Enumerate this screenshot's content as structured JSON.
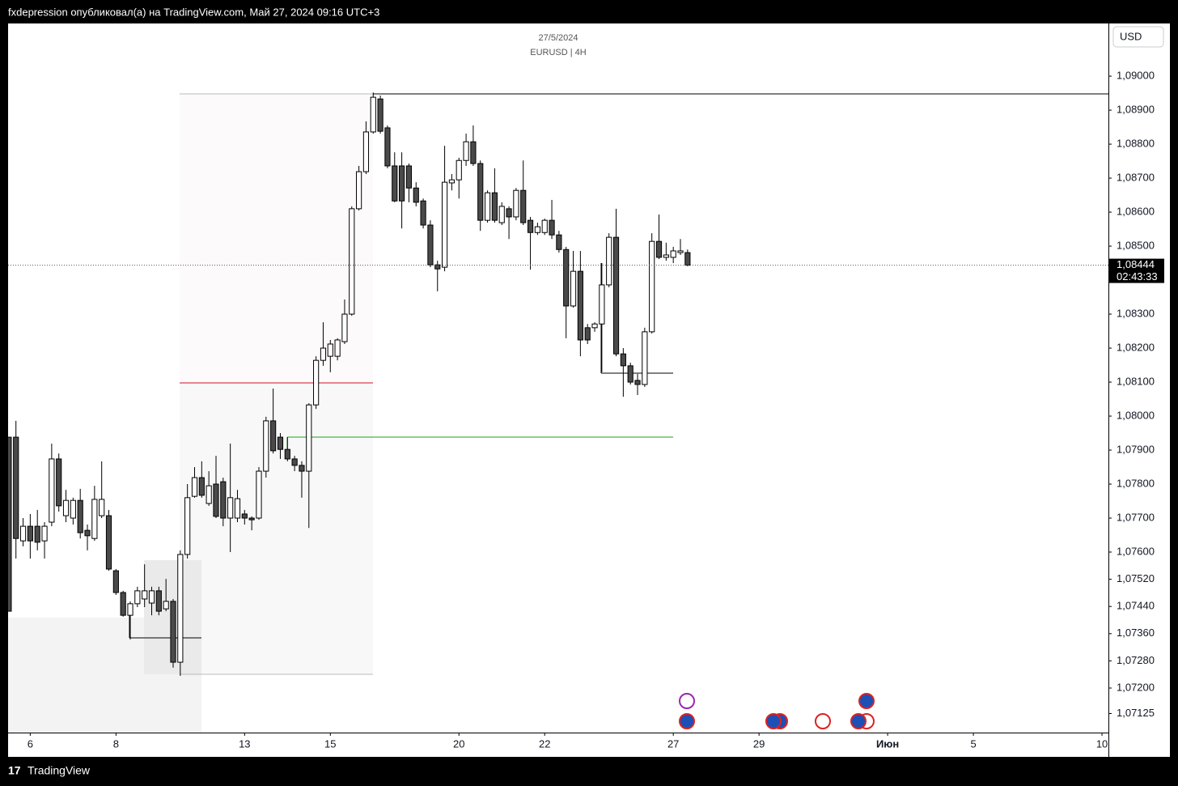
{
  "header": "fxdepression опубликовал(а) на TradingView.com, Май 27, 2024 09:16 UTC+3",
  "footer": "TradingView",
  "chart_data": {
    "type": "candlestick",
    "title": "27/5/2024",
    "subtitle": "EURUSD | 4H",
    "currency": "USD",
    "up_color": "#ffffff",
    "down_color": "#4a4a4a",
    "open": [
      1.07938,
      1.07938,
      1.07633,
      1.07676,
      1.07676,
      1.07633,
      1.07688,
      1.07874,
      1.07707,
      1.077,
      1.07752,
      1.07664,
      1.0764,
      1.07707,
      1.07707,
      1.07545,
      1.07481,
      1.07414,
      1.07448,
      1.07462,
      1.0745,
      1.07486,
      1.07433,
      1.07455,
      1.07276,
      1.07593,
      1.07764,
      1.07819,
      1.07743,
      1.078,
      1.07807,
      1.077,
      1.077,
      1.07712,
      1.077,
      1.077,
      1.07838,
      1.07986,
      1.07938,
      1.07902,
      1.07874,
      1.07855,
      1.07838,
      1.08033,
      1.08164,
      1.08176,
      1.08176,
      1.08219,
      1.083,
      1.0861,
      1.08719,
      1.08836,
      1.08933,
      1.08848,
      1.08736,
      1.08736,
      1.08736,
      1.08671,
      1.08633,
      1.08562,
      1.08445,
      1.08438,
      1.08686,
      1.08695,
      1.08752,
      1.08807,
      1.08743,
      1.08576,
      1.08657,
      1.08569,
      1.0861,
      1.08586,
      1.08664,
      1.08576,
      1.0854,
      1.0854,
      1.08576,
      1.08533,
      1.0849,
      1.08324,
      1.08426,
      1.0826,
      1.0826,
      1.08271,
      1.08386,
      1.08526,
      1.08183,
      1.08148,
      1.08105,
      1.08093,
      1.08248,
      1.08514,
      1.08467,
      1.08467,
      1.08481,
      1.08481
    ],
    "high": [
      1.07938,
      1.07986,
      1.077,
      1.07712,
      1.07724,
      1.07688,
      1.07919,
      1.0789,
      1.07783,
      1.0776,
      1.07786,
      1.07681,
      1.07795,
      1.07867,
      1.07724,
      1.0755,
      1.07486,
      1.07455,
      1.07498,
      1.07564,
      1.07498,
      1.07498,
      1.07521,
      1.07462,
      1.07605,
      1.078,
      1.0785,
      1.07867,
      1.07838,
      1.07883,
      1.07819,
      1.07919,
      1.07783,
      1.07724,
      1.07705,
      1.0785,
      1.07998,
      1.08081,
      1.0795,
      1.07938,
      1.07883,
      1.07867,
      1.08038,
      1.08176,
      1.08276,
      1.08224,
      1.08229,
      1.08343,
      1.08617,
      1.08736,
      1.08867,
      1.08952,
      1.08943,
      1.08855,
      1.08776,
      1.08776,
      1.08743,
      1.08688,
      1.0864,
      1.08576,
      1.08457,
      1.08795,
      1.08712,
      1.0876,
      1.08831,
      1.08855,
      1.08752,
      1.08664,
      1.08729,
      1.08629,
      1.08617,
      1.08671,
      1.08752,
      1.08586,
      1.08569,
      1.08581,
      1.08636,
      1.08545,
      1.08498,
      1.08486,
      1.08486,
      1.08271,
      1.08276,
      1.0845,
      1.08538,
      1.0861,
      1.082,
      1.08157,
      1.08124,
      1.0826,
      1.08538,
      1.08593,
      1.0851,
      1.08498,
      1.08521,
      1.0849
    ],
    "low": [
      1.07426,
      1.07581,
      1.07617,
      1.07581,
      1.07605,
      1.07581,
      1.07676,
      1.07719,
      1.07688,
      1.07681,
      1.0764,
      1.07605,
      1.07633,
      1.077,
      1.07545,
      1.07474,
      1.0741,
      1.07343,
      1.07438,
      1.07438,
      1.07414,
      1.07414,
      1.07426,
      1.0726,
      1.07236,
      1.07581,
      1.0776,
      1.0776,
      1.07736,
      1.077,
      1.07676,
      1.076,
      1.07688,
      1.07681,
      1.07664,
      1.07695,
      1.07819,
      1.0789,
      1.07874,
      1.07867,
      1.07838,
      1.0776,
      1.07671,
      1.08021,
      1.08148,
      1.08129,
      1.08164,
      1.08212,
      1.08295,
      1.08605,
      1.08712,
      1.08831,
      1.08831,
      1.08729,
      1.08629,
      1.08552,
      1.08629,
      1.08617,
      1.08552,
      1.08438,
      1.08367,
      1.08426,
      1.08664,
      1.0864,
      1.08736,
      1.08736,
      1.08545,
      1.08569,
      1.08569,
      1.08562,
      1.08521,
      1.08576,
      1.08562,
      1.08431,
      1.08533,
      1.08533,
      1.08521,
      1.08481,
      1.08229,
      1.08319,
      1.08176,
      1.08212,
      1.08248,
      1.08129,
      1.08379,
      1.08176,
      1.08057,
      1.08093,
      1.08062,
      1.08086,
      1.08243,
      1.08462,
      1.08457,
      1.0845,
      1.08474,
      1.08441
    ],
    "close": [
      1.07426,
      1.0764,
      1.07676,
      1.07633,
      1.07629,
      1.07676,
      1.07874,
      1.07736,
      1.07752,
      1.07752,
      1.07657,
      1.07648,
      1.07755,
      1.07755,
      1.0755,
      1.07481,
      1.07414,
      1.07448,
      1.07486,
      1.07486,
      1.07486,
      1.07426,
      1.07455,
      1.07276,
      1.07593,
      1.0776,
      1.07819,
      1.07767,
      1.07795,
      1.07705,
      1.077,
      1.0776,
      1.07757,
      1.077,
      1.07695,
      1.07838,
      1.07986,
      1.07898,
      1.07902,
      1.07874,
      1.07855,
      1.07838,
      1.08033,
      1.08164,
      1.082,
      1.08212,
      1.08224,
      1.083,
      1.0861,
      1.08719,
      1.08836,
      1.08938,
      1.08838,
      1.08736,
      1.08633,
      1.08633,
      1.08671,
      1.08629,
      1.08562,
      1.08445,
      1.08433,
      1.08688,
      1.08695,
      1.08752,
      1.08807,
      1.08743,
      1.08576,
      1.08657,
      1.08576,
      1.08617,
      1.08586,
      1.08664,
      1.08569,
      1.0854,
      1.08557,
      1.08576,
      1.08533,
      1.0849,
      1.08324,
      1.08426,
      1.08224,
      1.08224,
      1.08271,
      1.08386,
      1.08526,
      1.08183,
      1.08148,
      1.081,
      1.08093,
      1.08248,
      1.08514,
      1.08467,
      1.08474,
      1.08486,
      1.08486,
      1.08444
    ],
    "xlim": [
      -0.1,
      153.9
    ],
    "xticks": [
      {
        "value": 3,
        "label": "6"
      },
      {
        "value": 15,
        "label": "8"
      },
      {
        "value": 33,
        "label": "13"
      },
      {
        "value": 45,
        "label": "15"
      },
      {
        "value": 63,
        "label": "20"
      },
      {
        "value": 75,
        "label": "22"
      },
      {
        "value": 93,
        "label": "27"
      },
      {
        "value": 105,
        "label": "29"
      },
      {
        "value": 123,
        "label": "Июн"
      },
      {
        "value": 135,
        "label": "5"
      },
      {
        "value": 153,
        "label": "10"
      }
    ],
    "ylim": [
      1.07069,
      1.09155
    ],
    "yticks": [
      {
        "value": 1.09,
        "label": "1,09000"
      },
      {
        "value": 1.089,
        "label": "1,08900"
      },
      {
        "value": 1.088,
        "label": "1,08800"
      },
      {
        "value": 1.087,
        "label": "1,08700"
      },
      {
        "value": 1.086,
        "label": "1,08600"
      },
      {
        "value": 1.085,
        "label": "1,08500"
      },
      {
        "value": 1.083,
        "label": "1,08300"
      },
      {
        "value": 1.082,
        "label": "1,08200"
      },
      {
        "value": 1.081,
        "label": "1,08100"
      },
      {
        "value": 1.08,
        "label": "1,08000"
      },
      {
        "value": 1.079,
        "label": "1,07900"
      },
      {
        "value": 1.078,
        "label": "1,07800"
      },
      {
        "value": 1.077,
        "label": "1,07700"
      },
      {
        "value": 1.076,
        "label": "1,07600"
      },
      {
        "value": 1.0752,
        "label": "1,07520"
      },
      {
        "value": 1.0744,
        "label": "1,07440"
      },
      {
        "value": 1.0736,
        "label": "1,07360"
      },
      {
        "value": 1.0728,
        "label": "1,07280"
      },
      {
        "value": 1.072,
        "label": "1,07200"
      },
      {
        "value": 1.07125,
        "label": "1,07125"
      }
    ],
    "last_price": {
      "value": 1.08444,
      "label": "1,08444"
    },
    "countdown": "02:43:33"
  }
}
